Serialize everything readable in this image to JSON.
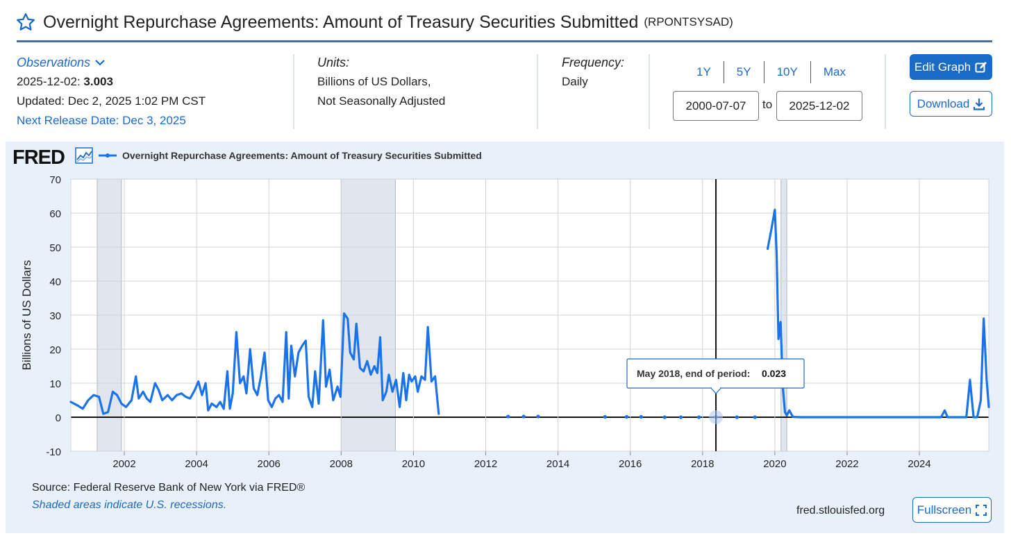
{
  "header": {
    "title": "Overnight Repurchase Agreements: Amount of Treasury Securities Submitted",
    "series_id": "(RPONTSYSAD)"
  },
  "observations": {
    "label": "Observations",
    "date": "2025-12-02:",
    "value": "3.003",
    "updated": "Updated: Dec 2, 2025 1:02 PM CST",
    "next_release": "Next Release Date: Dec 3, 2025"
  },
  "units": {
    "label": "Units:",
    "line1": "Billions of US Dollars,",
    "line2": "Not Seasonally Adjusted"
  },
  "frequency": {
    "label": "Frequency:",
    "value": "Daily"
  },
  "range": {
    "options": [
      "1Y",
      "5Y",
      "10Y",
      "Max"
    ],
    "start": "2000-07-07",
    "to": "to",
    "end": "2025-12-02"
  },
  "buttons": {
    "edit": "Edit Graph",
    "download": "Download",
    "fullscreen": "Fullscreen"
  },
  "chart_meta": {
    "logo": "FRED",
    "legend": "Overnight Repurchase Agreements: Amount of Treasury Securities Submitted",
    "source": "Source: Federal Reserve Bank of New York via FRED®",
    "shade_note": "Shaded areas indicate U.S. recessions.",
    "site": "fred.stlouisfed.org"
  },
  "tooltip": {
    "label": "May 2018, end of period:",
    "value": "0.023"
  },
  "chart_data": {
    "type": "line",
    "ylabel": "Billions of US Dollars",
    "xlabel": "",
    "xlim": [
      2000.52,
      2025.92
    ],
    "ylim": [
      -10,
      70
    ],
    "yticks": [
      -10,
      0,
      10,
      20,
      30,
      40,
      50,
      60,
      70
    ],
    "xticks": [
      2002,
      2004,
      2006,
      2008,
      2010,
      2012,
      2014,
      2016,
      2018,
      2020,
      2022,
      2024
    ],
    "grid": true,
    "line_color": "#1a73e8",
    "recessions": [
      [
        2001.25,
        2001.92
      ],
      [
        2008.0,
        2009.5
      ],
      [
        2020.17,
        2020.33
      ]
    ],
    "series": [
      {
        "name": "Overnight Repurchase Agreements: Amount of Treasury Securities Submitted",
        "segments": [
          [
            [
              2000.52,
              4.5
            ],
            [
              2000.7,
              3.5
            ],
            [
              2000.85,
              2.5
            ],
            [
              2001.0,
              5.0
            ],
            [
              2001.15,
              6.5
            ],
            [
              2001.3,
              6.0
            ],
            [
              2001.42,
              1.0
            ],
            [
              2001.55,
              1.5
            ],
            [
              2001.68,
              7.5
            ],
            [
              2001.8,
              6.5
            ],
            [
              2001.92,
              4.0
            ],
            [
              2002.05,
              3.0
            ],
            [
              2002.2,
              5.0
            ],
            [
              2002.32,
              12.0
            ],
            [
              2002.4,
              5.5
            ],
            [
              2002.52,
              7.5
            ],
            [
              2002.62,
              5.5
            ],
            [
              2002.72,
              4.5
            ],
            [
              2002.85,
              10.0
            ],
            [
              2002.95,
              8.0
            ],
            [
              2003.05,
              5.0
            ],
            [
              2003.2,
              6.5
            ],
            [
              2003.32,
              5.0
            ],
            [
              2003.45,
              6.5
            ],
            [
              2003.58,
              7.0
            ],
            [
              2003.7,
              6.0
            ],
            [
              2003.82,
              5.5
            ],
            [
              2003.95,
              8.0
            ],
            [
              2004.05,
              10.5
            ],
            [
              2004.15,
              6.5
            ],
            [
              2004.25,
              10.0
            ],
            [
              2004.32,
              2.0
            ],
            [
              2004.42,
              4.0
            ],
            [
              2004.55,
              3.0
            ],
            [
              2004.65,
              4.5
            ],
            [
              2004.75,
              2.5
            ],
            [
              2004.85,
              13.5
            ],
            [
              2004.92,
              2.5
            ],
            [
              2005.0,
              7.0
            ],
            [
              2005.1,
              25.0
            ],
            [
              2005.2,
              10.0
            ],
            [
              2005.3,
              12.0
            ],
            [
              2005.38,
              7.0
            ],
            [
              2005.48,
              20.0
            ],
            [
              2005.58,
              8.5
            ],
            [
              2005.68,
              6.5
            ],
            [
              2005.78,
              12.0
            ],
            [
              2005.88,
              19.0
            ],
            [
              2005.98,
              5.0
            ],
            [
              2006.08,
              3.0
            ],
            [
              2006.18,
              5.5
            ],
            [
              2006.28,
              6.5
            ],
            [
              2006.38,
              4.5
            ],
            [
              2006.48,
              25.0
            ],
            [
              2006.55,
              5.5
            ],
            [
              2006.62,
              21.0
            ],
            [
              2006.72,
              12.0
            ],
            [
              2006.82,
              19.0
            ],
            [
              2006.92,
              21.0
            ],
            [
              2007.02,
              22.5
            ],
            [
              2007.1,
              6.0
            ],
            [
              2007.2,
              3.0
            ],
            [
              2007.28,
              13.5
            ],
            [
              2007.38,
              4.0
            ],
            [
              2007.5,
              28.5
            ],
            [
              2007.58,
              9.0
            ],
            [
              2007.68,
              14.0
            ],
            [
              2007.78,
              5.0
            ],
            [
              2007.9,
              9.0
            ],
            [
              2007.98,
              6.0
            ],
            [
              2008.08,
              30.5
            ],
            [
              2008.18,
              29.0
            ],
            [
              2008.25,
              19.0
            ],
            [
              2008.35,
              17.0
            ],
            [
              2008.42,
              27.5
            ],
            [
              2008.52,
              14.5
            ],
            [
              2008.62,
              13.5
            ],
            [
              2008.72,
              16.5
            ],
            [
              2008.82,
              12.5
            ],
            [
              2008.92,
              15.0
            ],
            [
              2009.0,
              13.0
            ],
            [
              2009.08,
              23.5
            ],
            [
              2009.15,
              5.0
            ],
            [
              2009.25,
              7.5
            ],
            [
              2009.32,
              12.5
            ],
            [
              2009.42,
              7.5
            ],
            [
              2009.52,
              11.0
            ],
            [
              2009.62,
              3.0
            ],
            [
              2009.72,
              13.0
            ],
            [
              2009.8,
              5.0
            ],
            [
              2009.88,
              12.5
            ],
            [
              2009.95,
              10.5
            ],
            [
              2010.05,
              12.0
            ],
            [
              2010.12,
              7.5
            ],
            [
              2010.22,
              12.0
            ],
            [
              2010.32,
              11.0
            ],
            [
              2010.4,
              26.5
            ],
            [
              2010.5,
              10.5
            ],
            [
              2010.6,
              12.0
            ],
            [
              2010.7,
              1.0
            ]
          ],
          [
            [
              2019.8,
              49.5
            ],
            [
              2019.9,
              55.0
            ],
            [
              2020.0,
              61.0
            ],
            [
              2020.05,
              48.0
            ],
            [
              2020.1,
              23.0
            ],
            [
              2020.16,
              28.0
            ],
            [
              2020.22,
              9.0
            ],
            [
              2020.28,
              1.5
            ],
            [
              2020.33,
              0.5
            ],
            [
              2020.4,
              2.0
            ],
            [
              2020.5,
              0.1
            ],
            [
              2020.7,
              0.0
            ],
            [
              2021.0,
              0.0
            ],
            [
              2022.0,
              0.0
            ],
            [
              2023.0,
              0.0
            ],
            [
              2024.0,
              0.0
            ],
            [
              2024.6,
              0.0
            ],
            [
              2024.7,
              2.0
            ],
            [
              2024.78,
              0.0
            ],
            [
              2025.3,
              0.0
            ],
            [
              2025.4,
              11.0
            ],
            [
              2025.5,
              0.0
            ],
            [
              2025.6,
              0.0
            ],
            [
              2025.7,
              5.0
            ],
            [
              2025.78,
              29.0
            ],
            [
              2025.86,
              11.0
            ],
            [
              2025.92,
              3.0
            ]
          ]
        ],
        "points": [
          [
            2012.62,
            0.2
          ],
          [
            2013.05,
            0.2
          ],
          [
            2013.45,
            0.2
          ],
          [
            2015.3,
            0.1
          ],
          [
            2015.9,
            0.1
          ],
          [
            2016.3,
            0.1
          ],
          [
            2016.95,
            0.0
          ],
          [
            2017.4,
            0.0
          ],
          [
            2017.9,
            0.0
          ],
          [
            2018.37,
            0.023
          ],
          [
            2018.95,
            0.0
          ],
          [
            2019.45,
            0.0
          ]
        ]
      }
    ]
  }
}
